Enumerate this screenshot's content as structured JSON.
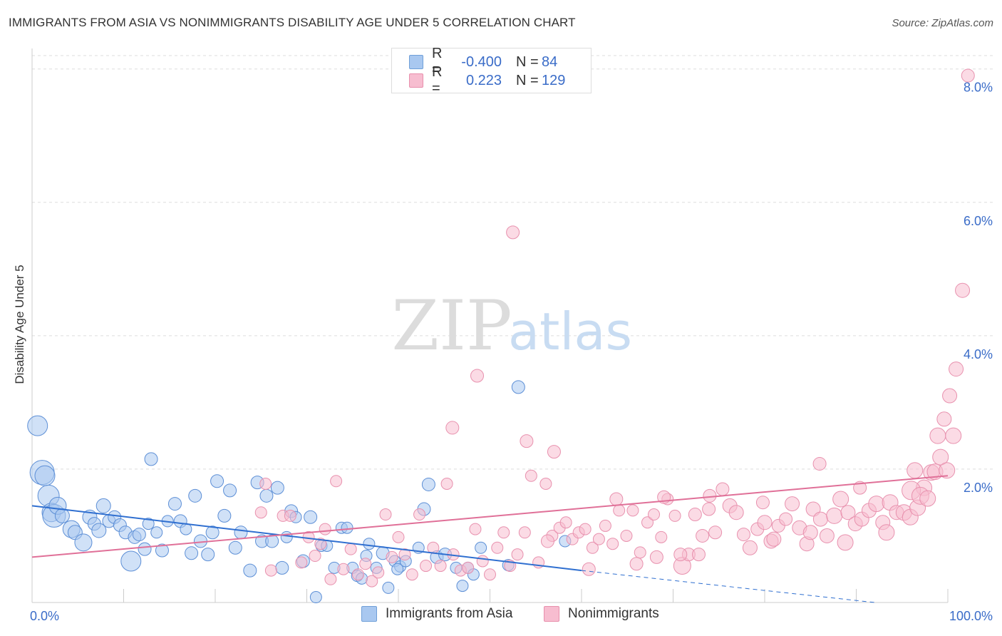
{
  "title": "IMMIGRANTS FROM ASIA VS NONIMMIGRANTS DISABILITY AGE UNDER 5 CORRELATION CHART",
  "source": "Source: ZipAtlas.com",
  "watermark": {
    "zip": "ZIP",
    "atlas": "atlas"
  },
  "legend_stats": [
    {
      "r_label": "R =",
      "r_value": "-0.400",
      "n_label": "N =",
      "n_value": "84",
      "color": "#a9c8f0",
      "border": "#6f9fd8"
    },
    {
      "r_label": "R =",
      "r_value": "0.223",
      "n_label": "N =",
      "n_value": "129",
      "color": "#f7bdd0",
      "border": "#e88fac"
    }
  ],
  "chart_data": {
    "type": "scatter",
    "title": "IMMIGRANTS FROM ASIA VS NONIMMIGRANTS DISABILITY AGE UNDER 5 CORRELATION CHART",
    "ylabel": "Disability Age Under 5",
    "xlim": [
      0,
      100
    ],
    "ylim": [
      0,
      8.2
    ],
    "x_tick_labels": [
      "0.0%",
      "100.0%"
    ],
    "y_ticks": [
      2,
      4,
      6,
      8
    ],
    "y_tick_labels": [
      "2.0%",
      "4.0%",
      "6.0%",
      "8.0%"
    ],
    "grid": true,
    "series": [
      {
        "name": "Immigrants from Asia",
        "color": "#a9c8f0",
        "stroke": "#5d8fd6",
        "trend": {
          "x0": 0,
          "y0": 1.45,
          "x1": 60,
          "y1": 0.48,
          "dashed_to_x": 92,
          "dashed_to_y": 0.0,
          "color": "#2f6fd0"
        },
        "points": [
          [
            0.6,
            2.65,
            14
          ],
          [
            1.1,
            1.95,
            17
          ],
          [
            1.4,
            1.9,
            14
          ],
          [
            1.8,
            1.6,
            15
          ],
          [
            2.1,
            1.35,
            13
          ],
          [
            2.4,
            1.3,
            16
          ],
          [
            2.8,
            1.45,
            12
          ],
          [
            3.3,
            1.3,
            10
          ],
          [
            4.3,
            1.1,
            12
          ],
          [
            4.7,
            1.05,
            10
          ],
          [
            5.6,
            0.9,
            12
          ],
          [
            6.3,
            1.28,
            10
          ],
          [
            6.8,
            1.18,
            9
          ],
          [
            7.3,
            1.08,
            10
          ],
          [
            7.8,
            1.45,
            10
          ],
          [
            8.4,
            1.22,
            9
          ],
          [
            9.0,
            1.28,
            9
          ],
          [
            9.6,
            1.16,
            9
          ],
          [
            10.2,
            1.05,
            9
          ],
          [
            10.8,
            0.62,
            14
          ],
          [
            11.2,
            0.98,
            9
          ],
          [
            11.7,
            1.02,
            9
          ],
          [
            12.3,
            0.8,
            9
          ],
          [
            13.0,
            2.15,
            9
          ],
          [
            12.7,
            1.18,
            8
          ],
          [
            13.6,
            1.05,
            8
          ],
          [
            14.2,
            0.78,
            9
          ],
          [
            14.8,
            1.22,
            8
          ],
          [
            15.6,
            1.48,
            9
          ],
          [
            16.2,
            1.22,
            9
          ],
          [
            16.8,
            1.1,
            8
          ],
          [
            17.4,
            0.74,
            9
          ],
          [
            17.8,
            1.6,
            9
          ],
          [
            18.4,
            0.92,
            9
          ],
          [
            19.2,
            0.72,
            9
          ],
          [
            19.7,
            1.05,
            9
          ],
          [
            20.2,
            1.82,
            9
          ],
          [
            21.0,
            1.3,
            9
          ],
          [
            21.6,
            1.68,
            9
          ],
          [
            22.2,
            0.82,
            9
          ],
          [
            22.8,
            1.05,
            9
          ],
          [
            23.8,
            0.48,
            9
          ],
          [
            24.6,
            1.8,
            9
          ],
          [
            25.1,
            0.92,
            9
          ],
          [
            25.6,
            1.6,
            9
          ],
          [
            26.2,
            0.92,
            9
          ],
          [
            26.8,
            1.72,
            9
          ],
          [
            27.3,
            0.52,
            9
          ],
          [
            27.8,
            0.98,
            8
          ],
          [
            28.3,
            1.37,
            9
          ],
          [
            28.8,
            1.28,
            8
          ],
          [
            29.6,
            0.62,
            9
          ],
          [
            30.4,
            1.28,
            9
          ],
          [
            31.0,
            0.08,
            8
          ],
          [
            31.6,
            0.85,
            8
          ],
          [
            32.2,
            0.85,
            8
          ],
          [
            33.0,
            0.52,
            8
          ],
          [
            33.8,
            1.12,
            8
          ],
          [
            34.4,
            1.12,
            8
          ],
          [
            35.0,
            0.52,
            8
          ],
          [
            35.5,
            0.4,
            8
          ],
          [
            36.0,
            0.36,
            8
          ],
          [
            36.8,
            0.88,
            8
          ],
          [
            37.6,
            0.52,
            8
          ],
          [
            38.3,
            0.74,
            9
          ],
          [
            38.9,
            0.22,
            8
          ],
          [
            39.6,
            0.62,
            8
          ],
          [
            40.2,
            0.54,
            8
          ],
          [
            40.8,
            0.62,
            8
          ],
          [
            42.2,
            0.82,
            8
          ],
          [
            42.8,
            1.4,
            9
          ],
          [
            43.3,
            1.77,
            9
          ],
          [
            44.2,
            0.68,
            9
          ],
          [
            45.1,
            0.72,
            9
          ],
          [
            46.3,
            0.52,
            8
          ],
          [
            47.0,
            0.25,
            8
          ],
          [
            47.6,
            0.52,
            8
          ],
          [
            48.2,
            0.42,
            8
          ],
          [
            49.0,
            0.82,
            8
          ],
          [
            52.0,
            0.56,
            8
          ],
          [
            53.1,
            3.23,
            9
          ],
          [
            58.2,
            0.92,
            8
          ],
          [
            39.9,
            0.5,
            8
          ],
          [
            36.5,
            0.7,
            8
          ]
        ]
      },
      {
        "name": "Nonimmigrants",
        "color": "#f7bdd0",
        "stroke": "#e891ae",
        "trend": {
          "x0": 0,
          "y0": 0.68,
          "x1": 100,
          "y1": 1.9,
          "color": "#e07098"
        },
        "points": [
          [
            25.0,
            1.35,
            8
          ],
          [
            25.5,
            1.78,
            8
          ],
          [
            26.1,
            0.48,
            8
          ],
          [
            27.4,
            1.3,
            8
          ],
          [
            28.2,
            1.3,
            8
          ],
          [
            29.4,
            0.6,
            8
          ],
          [
            30.2,
            0.98,
            8
          ],
          [
            30.9,
            0.7,
            8
          ],
          [
            31.5,
            0.88,
            8
          ],
          [
            32.0,
            1.1,
            8
          ],
          [
            32.6,
            0.35,
            8
          ],
          [
            33.2,
            1.82,
            8
          ],
          [
            34.0,
            0.5,
            8
          ],
          [
            34.8,
            0.8,
            8
          ],
          [
            35.6,
            0.42,
            8
          ],
          [
            36.4,
            0.58,
            8
          ],
          [
            37.1,
            0.32,
            8
          ],
          [
            37.8,
            0.45,
            8
          ],
          [
            38.6,
            1.32,
            8
          ],
          [
            39.3,
            0.68,
            8
          ],
          [
            40.0,
            0.98,
            8
          ],
          [
            40.7,
            0.72,
            8
          ],
          [
            41.5,
            0.42,
            8
          ],
          [
            42.3,
            1.32,
            8
          ],
          [
            43.0,
            0.55,
            8
          ],
          [
            43.8,
            0.82,
            8
          ],
          [
            44.6,
            0.55,
            8
          ],
          [
            45.3,
            1.78,
            8
          ],
          [
            46.0,
            0.72,
            8
          ],
          [
            46.8,
            0.48,
            8
          ],
          [
            47.6,
            0.52,
            8
          ],
          [
            48.4,
            1.1,
            8
          ],
          [
            49.2,
            0.62,
            8
          ],
          [
            50.0,
            0.42,
            8
          ],
          [
            50.8,
            0.82,
            8
          ],
          [
            51.5,
            1.05,
            8
          ],
          [
            52.2,
            0.55,
            8
          ],
          [
            53.0,
            0.72,
            8
          ],
          [
            53.8,
            1.05,
            8
          ],
          [
            54.5,
            1.9,
            8
          ],
          [
            55.3,
            0.6,
            8
          ],
          [
            56.1,
            1.78,
            8
          ],
          [
            56.8,
            1.0,
            8
          ],
          [
            57.6,
            1.12,
            8
          ],
          [
            58.3,
            1.2,
            8
          ],
          [
            59.0,
            0.95,
            8
          ],
          [
            59.7,
            1.05,
            8
          ],
          [
            60.4,
            1.1,
            8
          ],
          [
            61.2,
            0.82,
            8
          ],
          [
            61.9,
            0.95,
            8
          ],
          [
            62.6,
            1.15,
            8
          ],
          [
            63.4,
            0.88,
            8
          ],
          [
            64.1,
            1.38,
            8
          ],
          [
            64.9,
            1.0,
            8
          ],
          [
            65.6,
            1.38,
            8
          ],
          [
            66.4,
            0.75,
            8
          ],
          [
            67.2,
            1.2,
            8
          ],
          [
            67.9,
            1.32,
            8
          ],
          [
            68.7,
            0.98,
            8
          ],
          [
            69.4,
            1.55,
            8
          ],
          [
            70.2,
            1.3,
            8
          ],
          [
            71.0,
            0.55,
            12
          ],
          [
            71.7,
            0.72,
            9
          ],
          [
            72.4,
            1.32,
            9
          ],
          [
            73.2,
            1.0,
            9
          ],
          [
            73.9,
            1.4,
            9
          ],
          [
            74.6,
            1.05,
            9
          ],
          [
            75.4,
            1.7,
            9
          ],
          [
            76.2,
            1.45,
            10
          ],
          [
            76.9,
            1.35,
            10
          ],
          [
            77.7,
            1.02,
            9
          ],
          [
            78.4,
            0.82,
            10
          ],
          [
            79.2,
            1.1,
            9
          ],
          [
            80.0,
            1.2,
            10
          ],
          [
            80.7,
            0.92,
            10
          ],
          [
            81.5,
            1.15,
            9
          ],
          [
            82.3,
            1.25,
            9
          ],
          [
            83.0,
            1.48,
            10
          ],
          [
            83.8,
            1.12,
            10
          ],
          [
            84.6,
            0.88,
            10
          ],
          [
            85.3,
            1.4,
            10
          ],
          [
            86.1,
            1.25,
            10
          ],
          [
            86.8,
            1.0,
            10
          ],
          [
            87.6,
            1.3,
            11
          ],
          [
            88.3,
            1.55,
            11
          ],
          [
            89.1,
            1.35,
            10
          ],
          [
            89.9,
            1.18,
            10
          ],
          [
            90.6,
            1.25,
            10
          ],
          [
            91.4,
            1.38,
            10
          ],
          [
            92.2,
            1.48,
            11
          ],
          [
            92.9,
            1.2,
            10
          ],
          [
            93.7,
            1.5,
            11
          ],
          [
            94.4,
            1.35,
            10
          ],
          [
            95.2,
            1.35,
            11
          ],
          [
            95.9,
            1.28,
            11
          ],
          [
            96.7,
            1.42,
            11
          ],
          [
            97.4,
            1.72,
            11
          ],
          [
            98.2,
            1.95,
            11
          ],
          [
            98.9,
            2.5,
            11
          ],
          [
            99.6,
            2.75,
            10
          ],
          [
            100.2,
            3.1,
            10
          ],
          [
            100.9,
            3.5,
            10
          ],
          [
            101.6,
            4.68,
            10
          ],
          [
            102.2,
            7.9,
            9
          ],
          [
            96.0,
            1.68,
            13
          ],
          [
            97.0,
            1.6,
            12
          ],
          [
            96.4,
            1.98,
            11
          ],
          [
            97.8,
            1.56,
            11
          ],
          [
            99.2,
            2.18,
            11
          ],
          [
            98.6,
            1.96,
            11
          ],
          [
            100.6,
            2.5,
            11
          ],
          [
            99.9,
            1.98,
            11
          ],
          [
            93.3,
            1.05,
            11
          ],
          [
            88.8,
            0.9,
            11
          ],
          [
            85.0,
            1.05,
            10
          ],
          [
            81.0,
            0.95,
            10
          ],
          [
            45.9,
            2.62,
            9
          ],
          [
            48.6,
            3.4,
            9
          ],
          [
            54.0,
            2.42,
            9
          ],
          [
            57.0,
            2.26,
            9
          ],
          [
            63.8,
            1.55,
            9
          ],
          [
            69.0,
            1.58,
            9
          ],
          [
            74.0,
            1.6,
            9
          ],
          [
            79.8,
            1.5,
            9
          ],
          [
            86.0,
            2.08,
            9
          ],
          [
            90.4,
            1.72,
            9
          ],
          [
            56.3,
            0.92,
            9
          ],
          [
            60.8,
            0.5,
            9
          ],
          [
            66.0,
            0.58,
            9
          ],
          [
            68.2,
            0.68,
            9
          ],
          [
            70.8,
            0.72,
            9
          ],
          [
            72.8,
            0.72,
            9
          ],
          [
            52.5,
            5.55,
            9
          ]
        ]
      }
    ]
  },
  "x_axis_left": "0.0%",
  "x_axis_right": "100.0%",
  "bottom_legend": [
    "Immigrants from Asia",
    "Nonimmigrants"
  ]
}
